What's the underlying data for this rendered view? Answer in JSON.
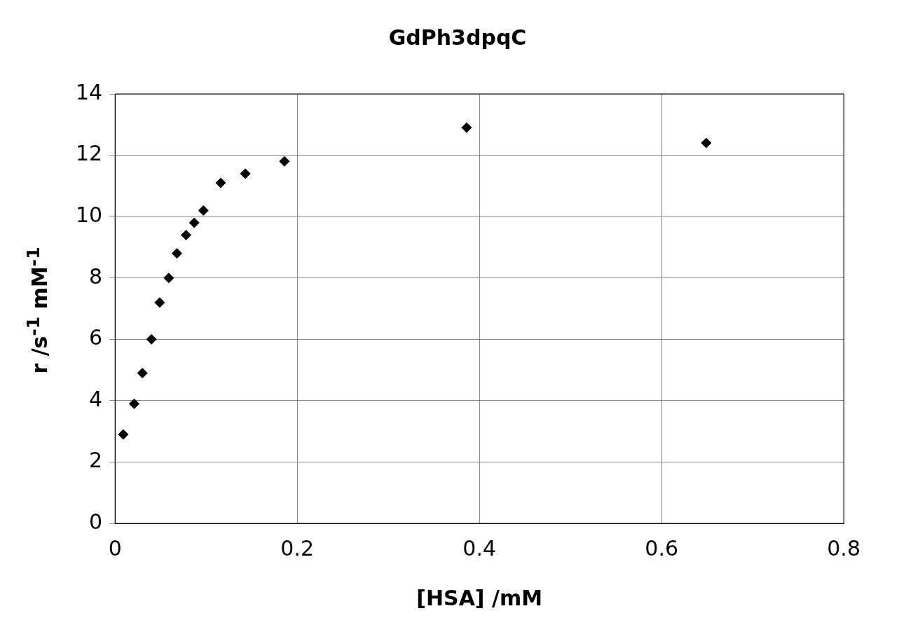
{
  "chart_data": {
    "type": "scatter",
    "title": "GdPh3dpqC",
    "xlabel": "[HSA] /mM",
    "ylabel": "r /s$^{-1}$ mM$^{-1}$",
    "x": [
      0.009,
      0.021,
      0.03,
      0.04,
      0.049,
      0.059,
      0.068,
      0.078,
      0.087,
      0.097,
      0.116,
      0.143,
      0.186,
      0.386,
      0.649
    ],
    "values": [
      2.9,
      3.9,
      4.9,
      6.0,
      7.2,
      8.0,
      8.8,
      9.4,
      9.8,
      10.2,
      11.1,
      11.4,
      11.8,
      12.9,
      12.4
    ],
    "color": "#000000",
    "marker": "diamond",
    "xlim": [
      0,
      0.8
    ],
    "xticks": [
      0,
      0.2,
      0.4,
      0.6,
      0.8
    ],
    "ylim": [
      0,
      14
    ],
    "yticks": [
      0,
      2,
      4,
      6,
      8,
      10,
      12,
      14
    ],
    "grid": true,
    "legend": false
  }
}
